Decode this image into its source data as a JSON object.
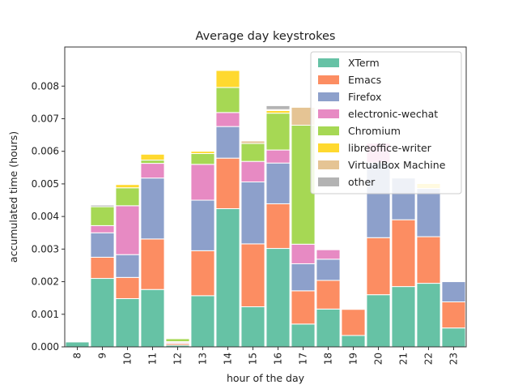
{
  "chart_data": {
    "type": "bar",
    "stacked": true,
    "title": "Average day keystrokes",
    "xlabel": "hour of the day",
    "ylabel": "accumulated time (hours)",
    "ylim": [
      0,
      0.0092
    ],
    "yticks": [
      "0.000",
      "0.001",
      "0.002",
      "0.003",
      "0.004",
      "0.005",
      "0.006",
      "0.007",
      "0.008"
    ],
    "grid": false,
    "legend_position": "top-right",
    "categories": [
      "8",
      "9",
      "10",
      "11",
      "12",
      "13",
      "14",
      "15",
      "16",
      "17",
      "18",
      "19",
      "20",
      "21",
      "22",
      "23"
    ],
    "series": [
      {
        "name": "XTerm",
        "color": "#66c2a5",
        "values": [
          0.00015,
          0.0021,
          0.00148,
          0.00176,
          5e-05,
          0.00157,
          0.00424,
          0.00123,
          0.00302,
          0.0007,
          0.00116,
          0.00035,
          0.0016,
          0.00185,
          0.00195,
          0.00058
        ]
      },
      {
        "name": "Emacs",
        "color": "#fc8d62",
        "values": [
          0,
          0.00065,
          0.00065,
          0.00155,
          5e-05,
          0.00138,
          0.00155,
          0.00193,
          0.00137,
          0.00102,
          0.00088,
          0.0008,
          0.00175,
          0.00205,
          0.00143,
          0.0008
        ]
      },
      {
        "name": "Firefox",
        "color": "#8da0cb",
        "values": [
          0,
          0.00075,
          0.0007,
          0.00187,
          3e-05,
          0.00155,
          0.00097,
          0.0019,
          0.00125,
          0.00083,
          0.00065,
          0,
          0.0023,
          0.00128,
          0.00148,
          0.00062
        ]
      },
      {
        "name": "electronic-wechat",
        "color": "#e78ac3",
        "values": [
          0,
          0.00022,
          0.0015,
          0.00045,
          3e-05,
          0.0011,
          0.00043,
          0.00063,
          0.0004,
          0.0006,
          0.00029,
          0,
          0.0006,
          0,
          0,
          0
        ]
      },
      {
        "name": "Chromium",
        "color": "#a6d854",
        "values": [
          0,
          0.00058,
          0.00055,
          0.0001,
          9e-05,
          0.00033,
          0.00077,
          0.00055,
          0.00113,
          0.00365,
          0,
          0,
          0,
          0,
          0,
          0
        ]
      },
      {
        "name": "libreoffice-writer",
        "color": "#ffd92f",
        "values": [
          0,
          0,
          0.0001,
          0.00018,
          0,
          7e-05,
          0.00052,
          0,
          8e-05,
          0,
          0,
          0,
          0,
          0,
          0.00015,
          0
        ]
      },
      {
        "name": "VirtualBox Machine",
        "color": "#e5c494",
        "values": [
          0,
          0,
          0,
          0,
          0,
          0,
          0,
          8e-05,
          3e-05,
          0.00055,
          0,
          0,
          0,
          0,
          0,
          0
        ]
      },
      {
        "name": "other",
        "color": "#b3b3b3",
        "values": [
          0,
          5e-05,
          0,
          0,
          0,
          0,
          0,
          2e-05,
          0.00012,
          0,
          0,
          0,
          0,
          0,
          0,
          0
        ]
      }
    ]
  }
}
